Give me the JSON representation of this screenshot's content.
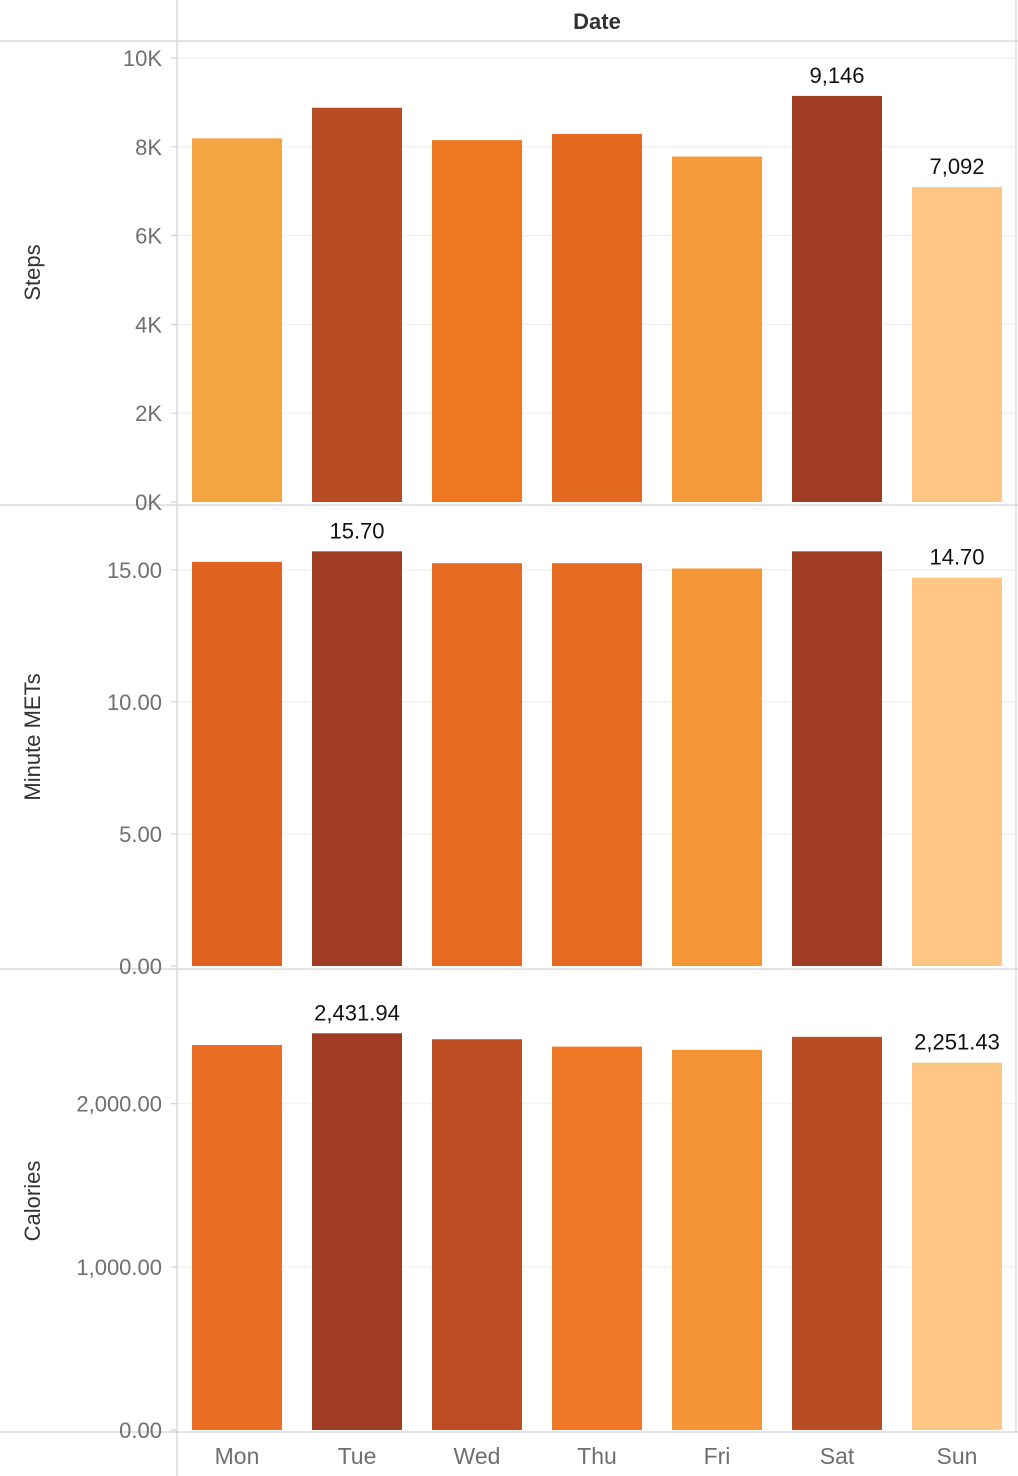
{
  "chart_data": {
    "type": "bar",
    "header": "Date",
    "categories": [
      "Mon",
      "Tue",
      "Wed",
      "Thu",
      "Fri",
      "Sat",
      "Sun"
    ],
    "panels": [
      {
        "name": "steps",
        "ylabel": "Steps",
        "ylim": [
          0,
          10000
        ],
        "ticks": [
          0,
          2000,
          4000,
          6000,
          8000,
          10000
        ],
        "tick_labels": [
          "0K",
          "2K",
          "4K",
          "6K",
          "8K",
          "10K"
        ],
        "values": [
          8190,
          8880,
          8150,
          8290,
          7780,
          9146,
          7092
        ],
        "colors": [
          "#f4a442",
          "#b84c22",
          "#ee7724",
          "#e46a22",
          "#f59b3c",
          "#a03c22",
          "#fec583"
        ],
        "data_labels": [
          null,
          null,
          null,
          null,
          null,
          "9,146",
          "7,092"
        ]
      },
      {
        "name": "minute-mets",
        "ylabel": "Minute METs",
        "ylim": [
          0,
          17
        ],
        "ticks": [
          0,
          5,
          10,
          15
        ],
        "tick_labels": [
          "0.00",
          "5.00",
          "10.00",
          "15.00"
        ],
        "values": [
          15.3,
          15.7,
          15.25,
          15.25,
          15.05,
          15.7,
          14.7
        ],
        "colors": [
          "#e06322",
          "#a03c22",
          "#e66a22",
          "#e66a22",
          "#f59737",
          "#a03c22",
          "#fec583"
        ],
        "data_labels": [
          null,
          "15.70",
          null,
          null,
          null,
          null,
          "14.70"
        ]
      },
      {
        "name": "calories",
        "ylabel": "Calories",
        "ylim": [
          0,
          2550
        ],
        "ticks": [
          0,
          1000,
          2000
        ],
        "tick_labels": [
          "0.00",
          "1,000.00",
          "2,000.00"
        ],
        "values": [
          2360,
          2431.94,
          2395,
          2350,
          2330,
          2410,
          2251.43
        ],
        "colors": [
          "#eb6e25",
          "#a03c22",
          "#bd4c22",
          "#ef7826",
          "#f59337",
          "#b84c22",
          "#fec583"
        ],
        "data_labels": [
          null,
          "2,431.94",
          null,
          null,
          null,
          null,
          "2,251.43"
        ]
      }
    ],
    "grid": true,
    "legend": "none"
  }
}
